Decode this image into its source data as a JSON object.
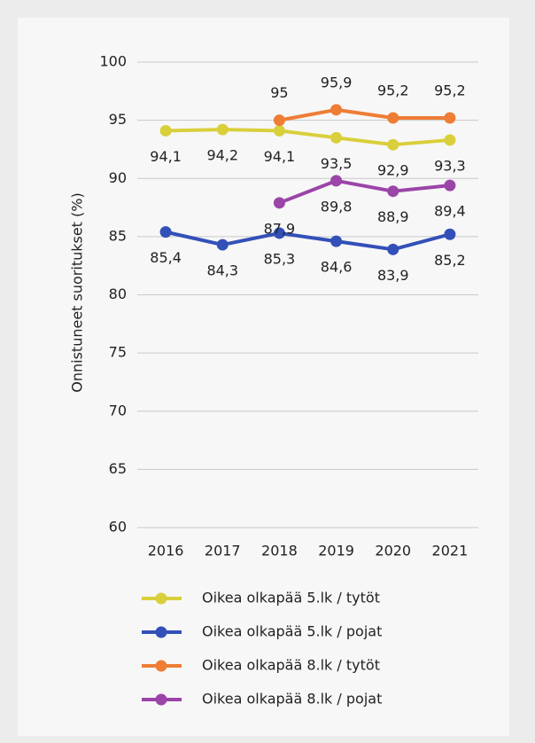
{
  "chart_data": {
    "type": "line",
    "categories": [
      "2016",
      "2017",
      "2018",
      "2019",
      "2020",
      "2021"
    ],
    "y_label": "Onnistuneet suoritukset (%)",
    "ylim": [
      60,
      100
    ],
    "yticks": [
      60,
      65,
      70,
      75,
      80,
      85,
      90,
      95,
      100
    ],
    "grid": true,
    "series": [
      {
        "name": "Oikea olkapää 5.lk / tytöt",
        "color": "#d9cf3a",
        "label_side": "below",
        "values": [
          94.1,
          94.2,
          94.1,
          93.5,
          92.9,
          93.3
        ],
        "value_labels": [
          "94,1",
          "94,2",
          "94,1",
          "93,5",
          "92,9",
          "93,3"
        ]
      },
      {
        "name": "Oikea olkapää 5.lk / pojat",
        "color": "#3350b8",
        "label_side": "below",
        "values": [
          85.4,
          84.3,
          85.3,
          84.6,
          83.9,
          85.2
        ],
        "value_labels": [
          "85,4",
          "84,3",
          "85,3",
          "84,6",
          "83,9",
          "85,2"
        ]
      },
      {
        "name": "Oikea olkapää 8.lk / tytöt",
        "color": "#ee7d35",
        "label_side": "above",
        "values": [
          null,
          null,
          95,
          95.9,
          95.2,
          95.2
        ],
        "value_labels": [
          null,
          null,
          "95",
          "95,9",
          "95,2",
          "95,2"
        ]
      },
      {
        "name": "Oikea olkapää 8.lk / pojat",
        "color": "#9b45a8",
        "label_side": "below",
        "values": [
          null,
          null,
          87.9,
          89.8,
          88.9,
          89.4
        ],
        "value_labels": [
          null,
          null,
          "87,9",
          "89,8",
          "88,9",
          "89,4"
        ]
      }
    ]
  }
}
